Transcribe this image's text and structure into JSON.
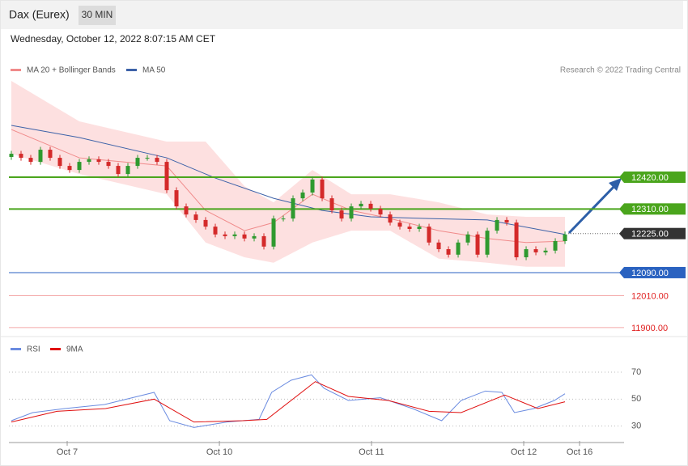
{
  "header": {
    "title": "Dax (Eurex)",
    "interval": "30 MIN",
    "timestamp": "Wednesday, October 12, 2022 8:07:15 AM CET"
  },
  "credit": "Research © 2022 Trading Central",
  "chart_data": [
    {
      "type": "candlestick",
      "legend": [
        "MA 20 + Bollinger Bands",
        "MA 50"
      ],
      "up_color": "#2f9a2f",
      "down_color": "#d42a2a",
      "xlim": [
        -0.25,
        63.08
      ],
      "ylim": [
        11880,
        12767
      ],
      "open": [
        12490,
        12501,
        12487,
        12473,
        12515,
        12487,
        12459,
        12445,
        12473,
        12482,
        12473,
        12459,
        12431,
        12459,
        12487,
        12487,
        12473,
        12375,
        12319,
        12291,
        12272,
        12249,
        12222,
        12216,
        12222,
        12208,
        12216,
        12180,
        12277,
        12277,
        12347,
        12367,
        12412,
        12347,
        12305,
        12277,
        12319,
        12328,
        12311,
        12291,
        12263,
        12249,
        12241,
        12249,
        12194,
        12171,
        12152,
        12194,
        12222,
        12152,
        12235,
        12272,
        12263,
        12143,
        12171,
        12160,
        12166,
        12199
      ],
      "high": [
        12511,
        12511,
        12497,
        12525,
        12525,
        12497,
        12469,
        12483,
        12492,
        12492,
        12483,
        12469,
        12469,
        12497,
        12497,
        12497,
        12483,
        12385,
        12329,
        12301,
        12282,
        12259,
        12232,
        12232,
        12232,
        12226,
        12226,
        12287,
        12287,
        12357,
        12377,
        12422,
        12422,
        12357,
        12315,
        12329,
        12338,
        12338,
        12321,
        12301,
        12273,
        12259,
        12259,
        12259,
        12204,
        12181,
        12204,
        12232,
        12232,
        12245,
        12282,
        12282,
        12273,
        12181,
        12181,
        12176,
        12209,
        12232
      ],
      "low": [
        12480,
        12477,
        12463,
        12463,
        12477,
        12449,
        12435,
        12435,
        12463,
        12463,
        12449,
        12421,
        12421,
        12449,
        12477,
        12463,
        12365,
        12309,
        12281,
        12262,
        12239,
        12212,
        12206,
        12206,
        12198,
        12198,
        12170,
        12170,
        12267,
        12267,
        12337,
        12357,
        12337,
        12295,
        12267,
        12267,
        12309,
        12301,
        12281,
        12253,
        12239,
        12231,
        12231,
        12184,
        12161,
        12142,
        12142,
        12184,
        12142,
        12142,
        12225,
        12253,
        12133,
        12133,
        12150,
        12150,
        12156,
        12189
      ],
      "close": [
        12501,
        12487,
        12473,
        12515,
        12487,
        12459,
        12445,
        12473,
        12482,
        12473,
        12459,
        12431,
        12459,
        12487,
        12487,
        12473,
        12375,
        12319,
        12291,
        12272,
        12249,
        12222,
        12216,
        12222,
        12208,
        12216,
        12180,
        12277,
        12277,
        12347,
        12367,
        12412,
        12347,
        12305,
        12277,
        12319,
        12328,
        12311,
        12291,
        12263,
        12249,
        12241,
        12249,
        12194,
        12171,
        12152,
        12194,
        12222,
        12152,
        12235,
        12272,
        12263,
        12143,
        12171,
        12160,
        12166,
        12199,
        12222
      ],
      "bands": {
        "color": "#fde0e0",
        "x": [
          0,
          7,
          16,
          20,
          24,
          27,
          31,
          35,
          39,
          44,
          49,
          53,
          57
        ],
        "upper": [
          12753,
          12613,
          12543,
          12543,
          12389,
          12333,
          12445,
          12361,
          12361,
          12333,
          12291,
          12283,
          12283
        ],
        "lower": [
          12501,
          12431,
          12361,
          12194,
          12143,
          12124,
          12194,
          12235,
          12235,
          12138,
          12124,
          12110,
          12110
        ]
      },
      "series": [
        {
          "name": "MA 20",
          "color": "#f08a8a",
          "x": [
            0,
            7,
            16,
            20,
            24,
            27,
            31,
            35,
            39,
            44,
            49,
            53,
            57
          ],
          "values": [
            12585,
            12487,
            12459,
            12305,
            12235,
            12263,
            12361,
            12305,
            12277,
            12235,
            12208,
            12194,
            12199
          ]
        },
        {
          "name": "MA 50",
          "color": "#3d62a8",
          "x": [
            0,
            7,
            16,
            21,
            27,
            32,
            37,
            43,
            49,
            57
          ],
          "values": [
            12599,
            12557,
            12487,
            12417,
            12347,
            12305,
            12283,
            12277,
            12272,
            12222
          ]
        }
      ],
      "levels": [
        {
          "value": 12420,
          "label": "12420.00",
          "color": "#4aa51c",
          "style": "box"
        },
        {
          "value": 12310,
          "label": "12310.00",
          "color": "#4aa51c",
          "style": "box"
        },
        {
          "value": 12225,
          "label": "12225.00",
          "color": "#333333",
          "style": "dotted"
        },
        {
          "value": 12090,
          "label": "12090.00",
          "color": "#2a62c0",
          "style": "box"
        },
        {
          "value": 12010,
          "label": "12010.00",
          "color": "#f4a6a6",
          "style": "text"
        },
        {
          "value": 11900,
          "label": "11900.00",
          "color": "#f4a6a6",
          "style": "text"
        }
      ]
    },
    {
      "type": "line",
      "xlim": [
        -0.25,
        63.08
      ],
      "ylim": [
        19,
        91
      ],
      "yticks": [
        30,
        50,
        70
      ],
      "xticks": [
        {
          "value": 5.75,
          "label": "Oct 7"
        },
        {
          "value": 21.42,
          "label": "Oct 10"
        },
        {
          "value": 37.08,
          "label": "Oct 11"
        },
        {
          "value": 52.75,
          "label": "Oct 12"
        },
        {
          "value": 58.5,
          "label": "Oct 16"
        }
      ],
      "series": [
        {
          "name": "RSI",
          "color": "#6a8be0",
          "x": [
            0,
            2.2,
            5.5,
            9.6,
            13,
            14.7,
            16.3,
            18.8,
            22.2,
            25.5,
            26.8,
            28.8,
            30.9,
            32.2,
            34.7,
            38,
            41.3,
            44.3,
            46.3,
            48.8,
            50.5,
            51.8,
            53.8,
            55.9,
            57
          ],
          "values": [
            34,
            40,
            43,
            46,
            52,
            55,
            34,
            29,
            33,
            35,
            55,
            64,
            68,
            58,
            49,
            51,
            43,
            34,
            49,
            56,
            55,
            40,
            43,
            49,
            54
          ]
        },
        {
          "name": "9MA",
          "color": "#e01010",
          "x": [
            0,
            4.7,
            9.7,
            14.7,
            18.8,
            23.8,
            26.3,
            31.3,
            34.7,
            38.8,
            43,
            46.3,
            50.8,
            54.2,
            57
          ],
          "values": [
            33,
            41,
            43,
            50,
            33,
            34,
            35,
            63,
            52,
            49,
            41,
            40,
            53,
            43,
            48
          ]
        }
      ]
    }
  ]
}
